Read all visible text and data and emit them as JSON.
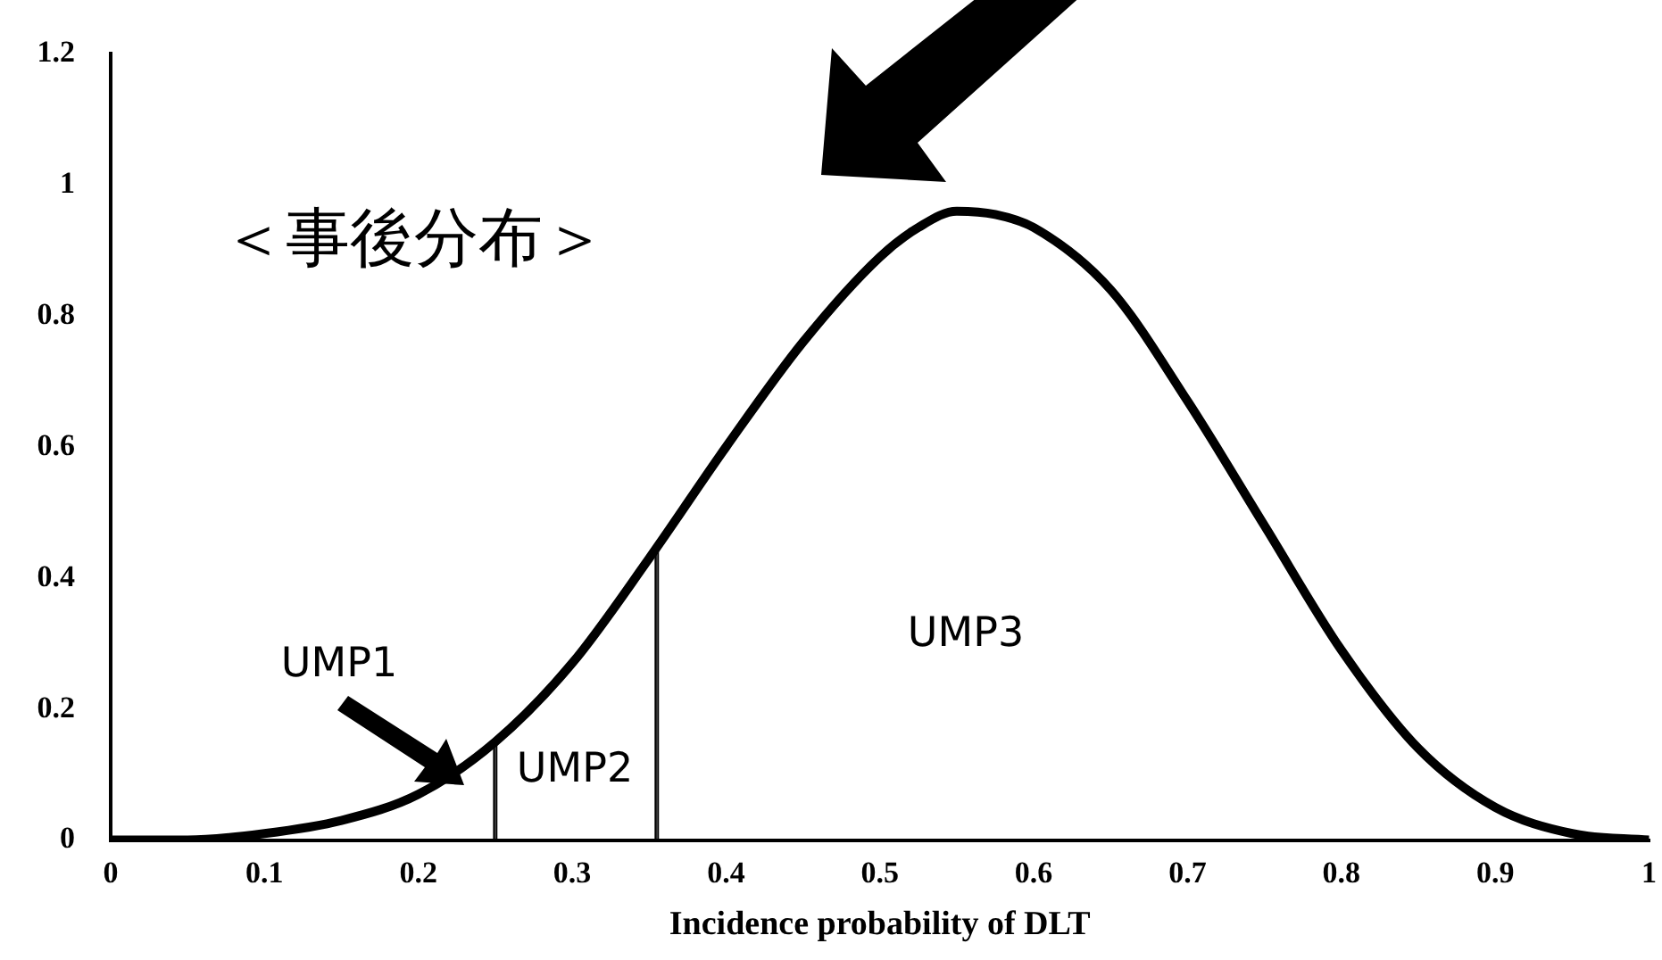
{
  "chart_data": {
    "type": "line",
    "xlabel": "Incidence probability of DLT",
    "x": [
      0,
      0.05,
      0.1,
      0.15,
      0.2,
      0.25,
      0.3,
      0.35,
      0.4,
      0.45,
      0.5,
      0.525,
      0.55,
      0.575,
      0.6,
      0.65,
      0.7,
      0.75,
      0.8,
      0.85,
      0.9,
      0.95,
      1
    ],
    "series": [
      {
        "color": "#000000",
        "values": [
          0,
          0,
          0.01,
          0.03,
          0.07,
          0.15,
          0.27,
          0.43,
          0.6,
          0.76,
          0.89,
          0.935,
          0.96,
          0.955,
          0.935,
          0.84,
          0.67,
          0.48,
          0.29,
          0.14,
          0.05,
          0.01,
          0
        ]
      },
      {
        "type": "bar",
        "color": "#000000",
        "x": [
          0.25,
          0.355
        ],
        "values": [
          0.15,
          0.45
        ]
      }
    ],
    "xlim": [
      0,
      1
    ],
    "xticks": [
      0,
      0.1,
      0.2,
      0.3,
      0.4,
      0.5,
      0.6,
      0.7,
      0.8,
      0.9,
      1
    ],
    "ylim": [
      0,
      1.2
    ],
    "yticks": [
      0,
      0.2,
      0.4,
      0.6,
      0.8,
      1,
      1.2
    ],
    "grid": false,
    "legend": false,
    "marker": "none",
    "line_style": "solid",
    "annotations": [
      "＜事後分布＞",
      "UMP1",
      "UMP2",
      "UMP3"
    ]
  }
}
